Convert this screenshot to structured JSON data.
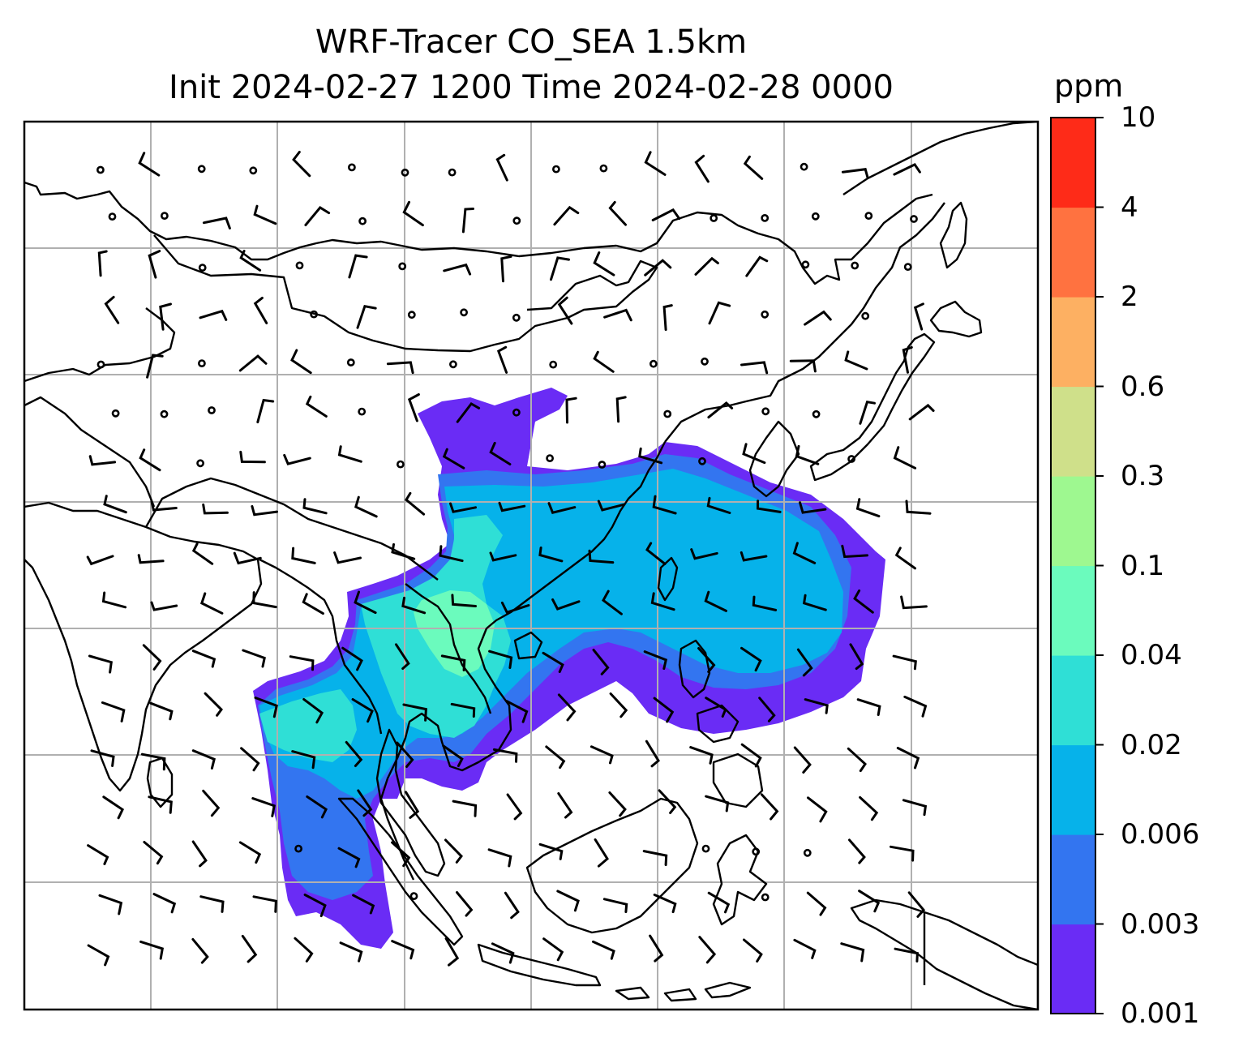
{
  "title": {
    "line1": "WRF-Tracer CO_SEA 1.5km",
    "line2": "Init 2024-02-27 1200 Time 2024-02-28 0000"
  },
  "colorbar": {
    "unit": "ppm",
    "levels": [
      "0.001",
      "0.003",
      "0.006",
      "0.02",
      "0.04",
      "0.1",
      "0.3",
      "0.6",
      "2",
      "4",
      "10"
    ],
    "colors": [
      "#6a2cf5",
      "#3375f0",
      "#06b2ea",
      "#2fdfd6",
      "#6bfbbd",
      "#9ef890",
      "#cfe08a",
      "#fdb062",
      "#ff7240",
      "#fe2b18"
    ]
  },
  "map": {
    "type": "filled contour map with wind barbs",
    "gridlines": true,
    "coastlines": true,
    "barb_color": "#000000",
    "ocean_color": "#ffffff"
  }
}
